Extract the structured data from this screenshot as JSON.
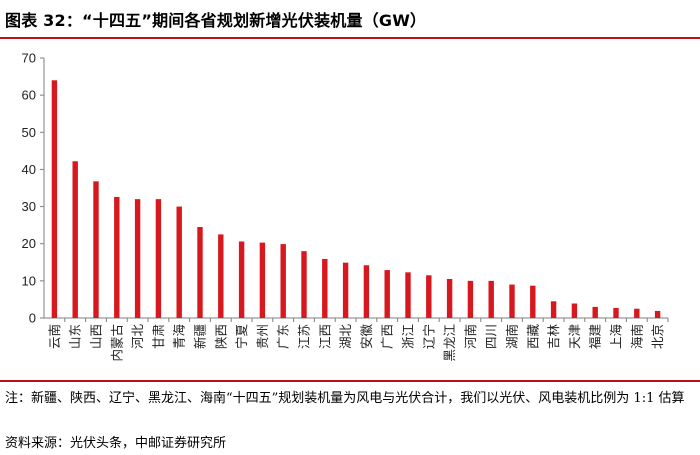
{
  "header": {
    "title": "图表 32：“十四五”期间各省规划新增光伏装机量（GW）"
  },
  "colors": {
    "bar": "#d7191f",
    "accent_rule": "#b5121b",
    "axis": "#7f7f7f"
  },
  "chart_data": {
    "type": "bar",
    "title": "",
    "xlabel": "",
    "ylabel": "",
    "ylim": [
      0,
      70
    ],
    "yticks": [
      0,
      10,
      20,
      30,
      40,
      50,
      60,
      70
    ],
    "grid": false,
    "categories": [
      "云南",
      "山东",
      "山西",
      "内蒙古",
      "河北",
      "甘肃",
      "青海",
      "新疆",
      "陕西",
      "宁夏",
      "贵州",
      "广东",
      "江苏",
      "江西",
      "湖北",
      "安徽",
      "广西",
      "浙江",
      "辽宁",
      "黑龙江",
      "河南",
      "四川",
      "湖南",
      "西藏",
      "吉林",
      "天津",
      "福建",
      "上海",
      "海南",
      "北京"
    ],
    "values": [
      64.0,
      42.2,
      36.8,
      32.6,
      32.0,
      32.0,
      30.0,
      24.5,
      22.5,
      20.6,
      20.3,
      19.9,
      18.0,
      15.9,
      14.9,
      14.2,
      12.9,
      12.3,
      11.5,
      10.5,
      10.0,
      10.0,
      9.0,
      8.7,
      4.5,
      3.9,
      3.0,
      2.7,
      2.5,
      1.9
    ]
  },
  "footer": {
    "note": "注：新疆、陕西、辽宁、黑龙江、海南“十四五”规划装机量为风电与光伏合计，我们以光伏、风电装机比例为 1:1 估算",
    "source": "资料来源：光伏头条，中邮证券研究所"
  }
}
